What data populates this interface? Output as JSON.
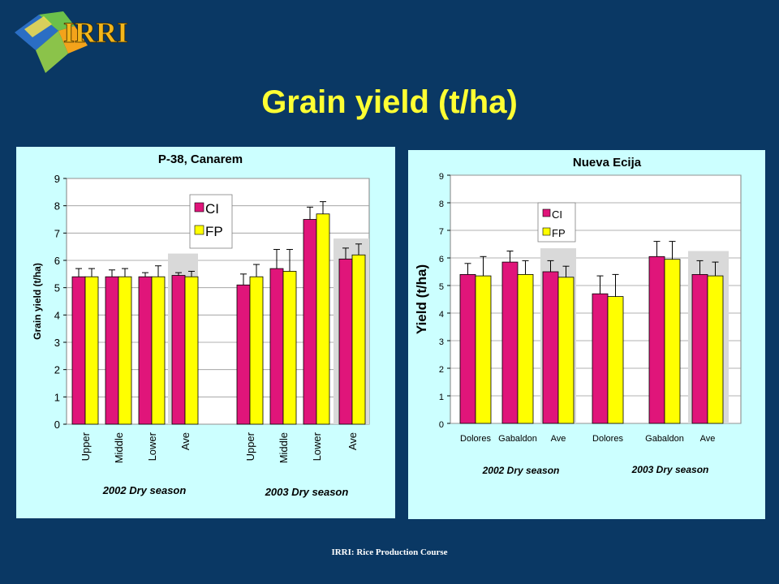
{
  "slide": {
    "title": "Grain yield (t/ha)",
    "logo_text": "IRRI",
    "footer": "IRRI: Rice Production Course"
  },
  "colors": {
    "background": "#0a3864",
    "title": "#ffff33",
    "panel": "#ccffff",
    "ci": "#e0157a",
    "fp": "#ffff00",
    "ave_shade": "#d9d9d9"
  },
  "chart_data": [
    {
      "type": "bar",
      "title": "P-38, Canarem",
      "ylabel": "Grain yield (t/ha)",
      "xlabel": "",
      "ylim": [
        0,
        9
      ],
      "yticks": [
        0,
        1,
        2,
        3,
        4,
        5,
        6,
        7,
        8,
        9
      ],
      "grid": true,
      "legend": "top-center",
      "categories": [
        "Upper",
        "Middle",
        "Lower",
        "Ave",
        "Upper",
        "Middle",
        "Lower",
        "Ave"
      ],
      "groups": [
        {
          "label": "2002 Dry season",
          "categories": [
            "Upper",
            "Middle",
            "Lower",
            "Ave"
          ]
        },
        {
          "label": "2003 Dry season",
          "categories": [
            "Upper",
            "Middle",
            "Lower",
            "Ave"
          ]
        }
      ],
      "series": [
        {
          "name": "CI",
          "values": [
            5.4,
            5.4,
            5.4,
            5.45,
            5.1,
            5.7,
            7.5,
            6.05
          ],
          "error": [
            0.3,
            0.25,
            0.15,
            0.1,
            0.4,
            0.7,
            0.45,
            0.4
          ]
        },
        {
          "name": "FP",
          "values": [
            5.4,
            5.4,
            5.4,
            5.4,
            5.4,
            5.6,
            7.7,
            6.2
          ],
          "error": [
            0.3,
            0.3,
            0.4,
            0.2,
            0.45,
            0.8,
            0.45,
            0.4
          ]
        }
      ]
    },
    {
      "type": "bar",
      "title": "Nueva Ecija",
      "ylabel": "Yield (t/ha)",
      "xlabel": "",
      "ylim": [
        0,
        9
      ],
      "yticks": [
        0,
        1,
        2,
        3,
        4,
        5,
        6,
        7,
        8,
        9
      ],
      "grid": true,
      "legend": "top-left",
      "categories": [
        "Dolores",
        "Gabaldon",
        "Ave",
        "Dolores",
        "Gabaldon",
        "Ave"
      ],
      "groups": [
        {
          "label": "2002 Dry season",
          "categories": [
            "Dolores",
            "Gabaldon",
            "Ave"
          ]
        },
        {
          "label": "2003 Dry season",
          "categories": [
            "Dolores",
            "Gabaldon",
            "Ave"
          ]
        }
      ],
      "series": [
        {
          "name": "CI",
          "values": [
            5.4,
            5.85,
            5.5,
            4.7,
            6.05,
            5.4
          ],
          "error": [
            0.4,
            0.4,
            0.4,
            0.65,
            0.55,
            0.5
          ]
        },
        {
          "name": "FP",
          "values": [
            5.35,
            5.4,
            5.3,
            4.6,
            5.95,
            5.35
          ],
          "error": [
            0.7,
            0.5,
            0.4,
            0.8,
            0.65,
            0.5
          ]
        }
      ]
    }
  ]
}
